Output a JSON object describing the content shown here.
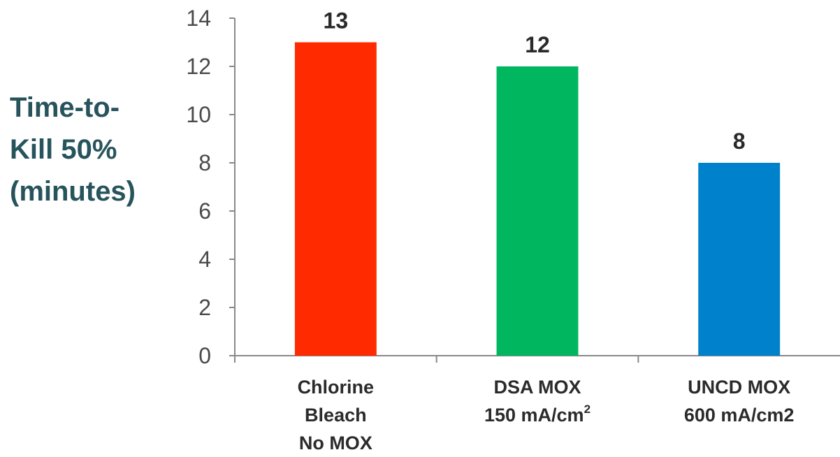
{
  "chart_data": {
    "type": "bar",
    "ylabel_lines": [
      "Time-to-",
      "Kill 50%",
      "(minutes)"
    ],
    "categories": [
      {
        "lines": [
          "Chlorine",
          "Bleach",
          "No MOX"
        ],
        "sup": ""
      },
      {
        "lines": [
          "DSA MOX",
          "150 mA/cm"
        ],
        "sup": "2"
      },
      {
        "lines": [
          "UNCD MOX",
          "600 mA/cm2"
        ],
        "sup": ""
      }
    ],
    "values": [
      13,
      12,
      8
    ],
    "colors": [
      "#ff2a00",
      "#00b760",
      "#0081cc"
    ],
    "ylim": [
      0,
      14
    ],
    "yticks": [
      "0",
      "2",
      "4",
      "6",
      "8",
      "10",
      "12",
      "14"
    ],
    "grid": false,
    "legend": "none"
  }
}
